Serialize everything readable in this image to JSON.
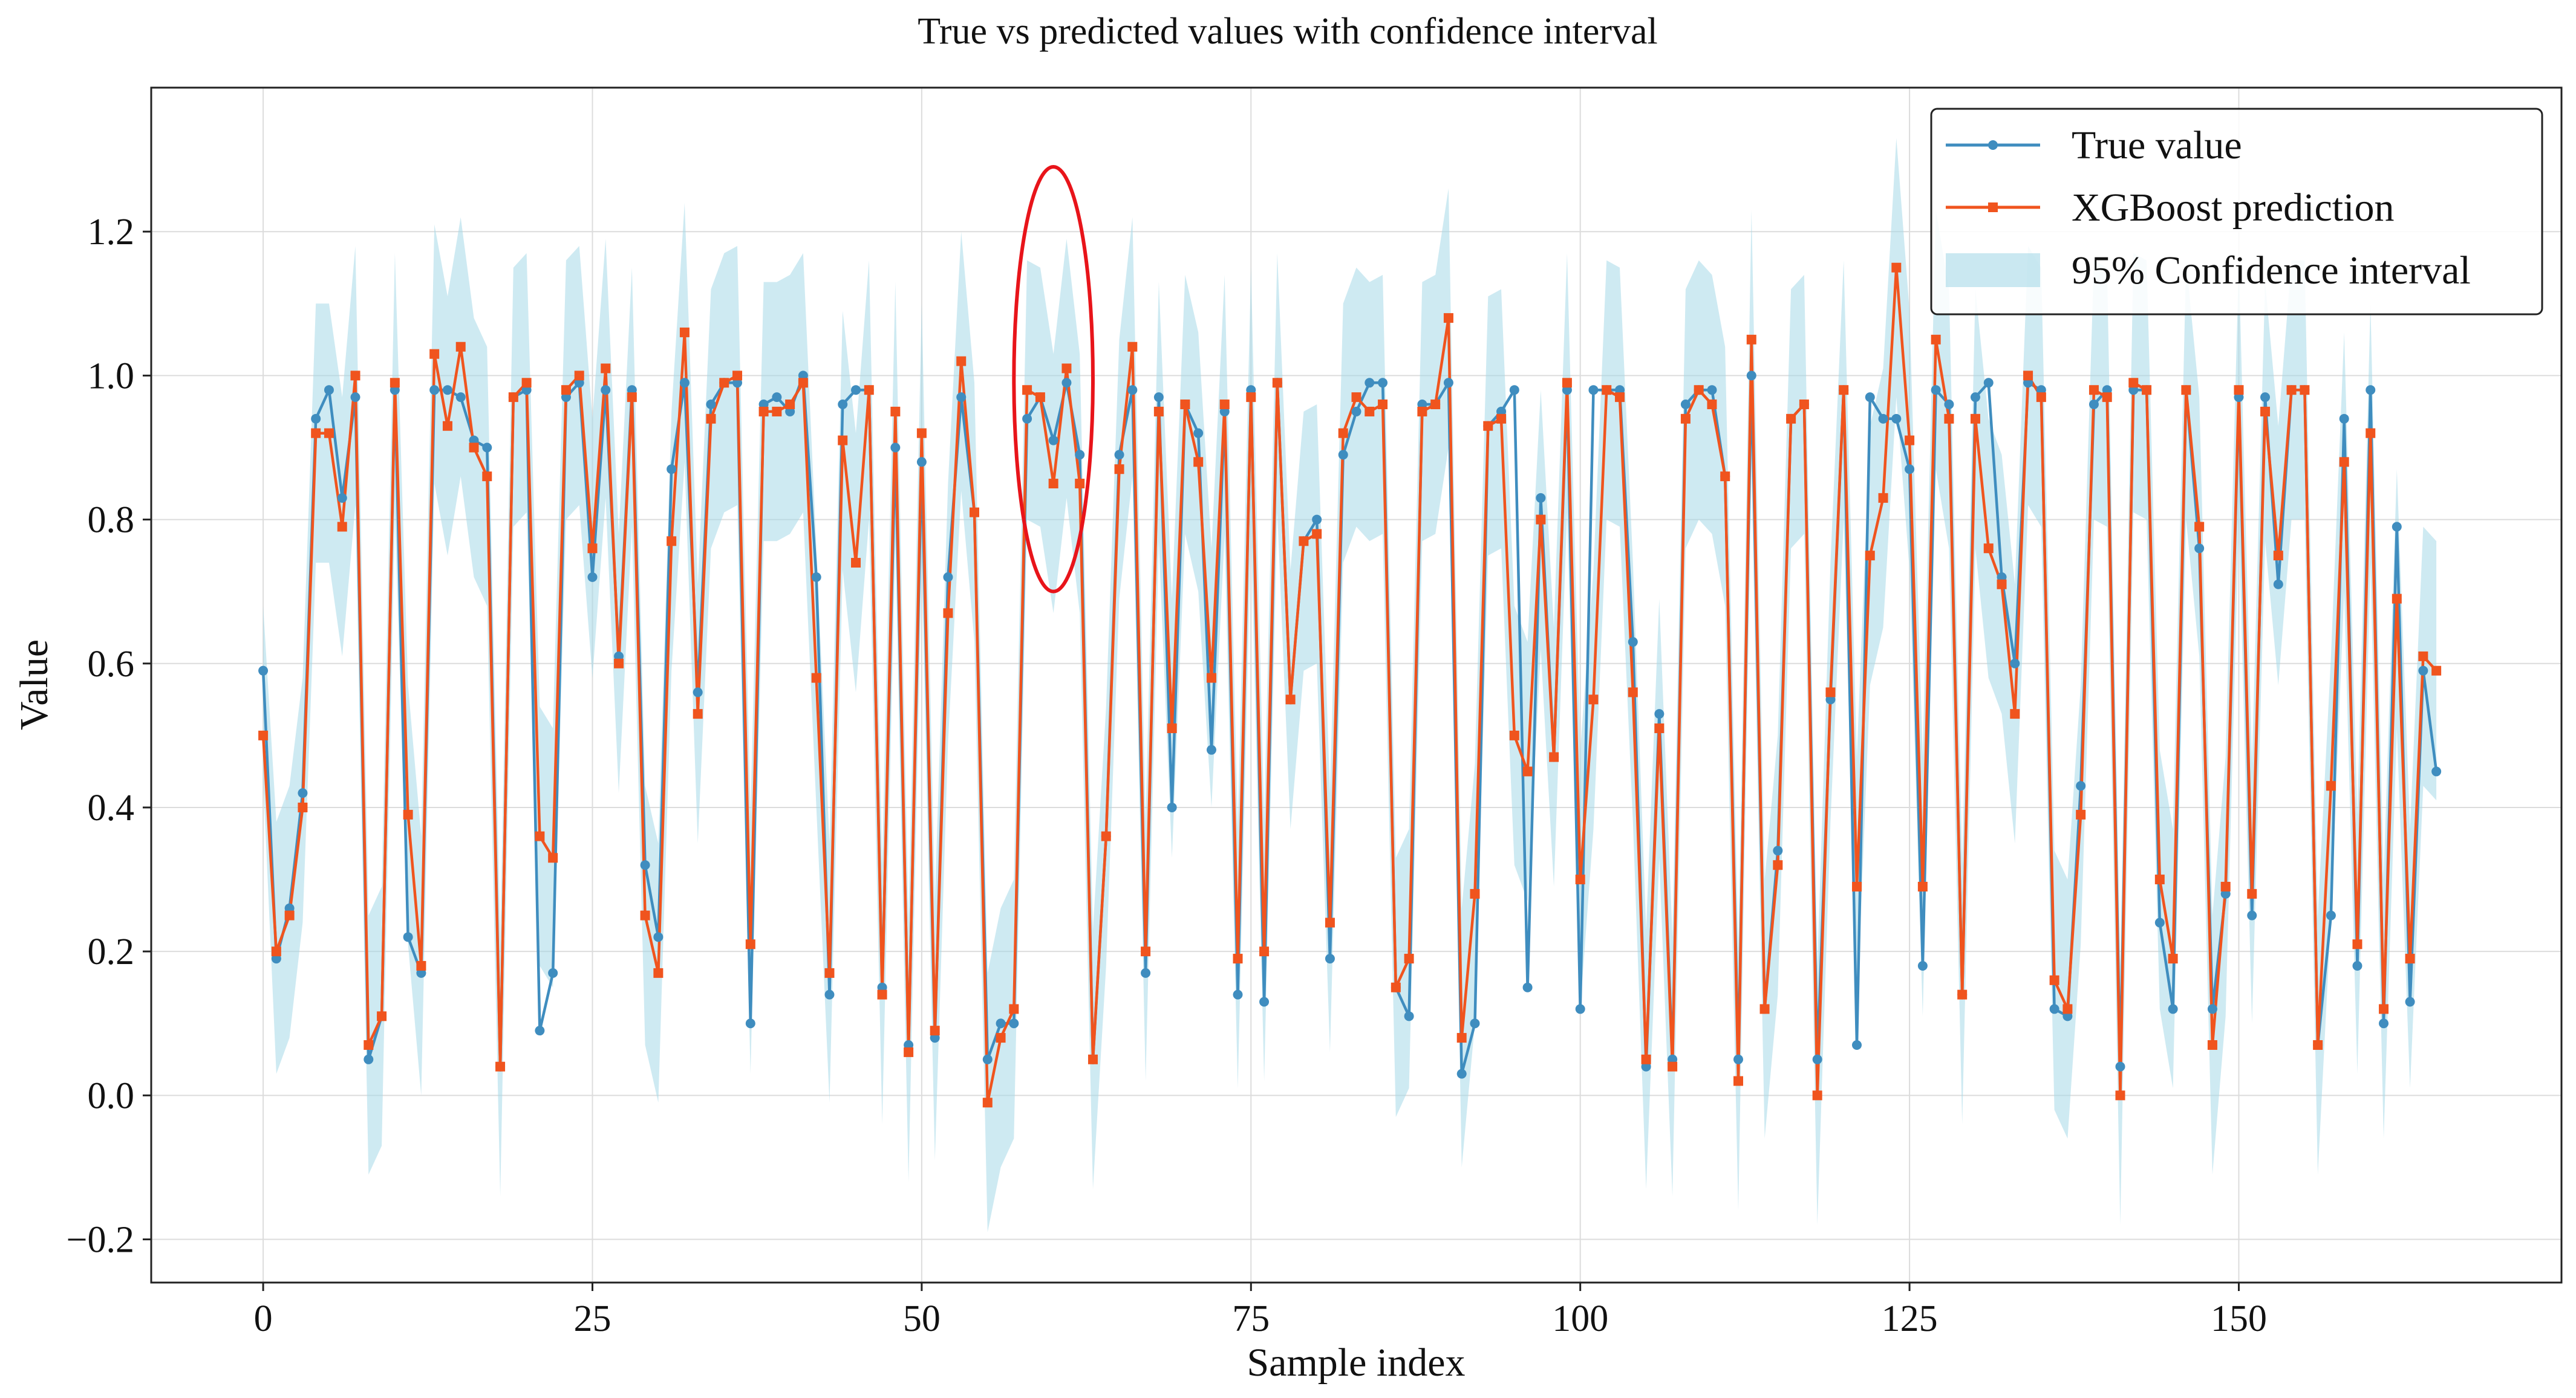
{
  "chart_data": {
    "type": "line",
    "title": "True vs predicted values with confidence interval",
    "xlabel": "Sample index",
    "ylabel": "Value",
    "xlim": [
      -8.5,
      174.5
    ],
    "ylim": [
      -0.26,
      1.4
    ],
    "xticks": [
      0,
      25,
      50,
      75,
      100,
      125,
      150
    ],
    "yticks": [
      -0.2,
      0.0,
      0.2,
      0.4,
      0.6,
      0.8,
      1.0,
      1.2
    ],
    "ytick_labels": [
      "−0.2",
      "0.0",
      "0.2",
      "0.4",
      "0.6",
      "0.8",
      "1.0",
      "1.2"
    ],
    "grid": true,
    "legend_position": "top-right",
    "colors": {
      "true": "#3f8dbf",
      "pred": "#f0541e",
      "ci": "#a6d8e7",
      "highlight": "#e8141a"
    },
    "x": [
      0,
      1,
      2,
      3,
      4,
      5,
      6,
      7,
      8,
      9,
      10,
      11,
      12,
      13,
      14,
      15,
      16,
      17,
      18,
      19,
      20,
      21,
      22,
      23,
      24,
      25,
      26,
      27,
      28,
      29,
      30,
      31,
      32,
      33,
      34,
      35,
      36,
      37,
      38,
      39,
      40,
      41,
      42,
      43,
      44,
      45,
      46,
      47,
      48,
      49,
      50,
      51,
      52,
      53,
      54,
      55,
      56,
      57,
      58,
      59,
      60,
      61,
      62,
      63,
      64,
      65,
      66,
      67,
      68,
      69,
      70,
      71,
      72,
      73,
      74,
      75,
      76,
      77,
      78,
      79,
      80,
      81,
      82,
      83,
      84,
      85,
      86,
      87,
      88,
      89,
      90,
      91,
      92,
      93,
      94,
      95,
      96,
      97,
      98,
      99,
      100,
      101,
      102,
      103,
      104,
      105,
      106,
      107,
      108,
      109,
      110,
      111,
      112,
      113,
      114,
      115,
      116,
      117,
      118,
      119,
      120,
      121,
      122,
      123,
      124,
      125,
      126,
      127,
      128,
      129,
      130,
      131,
      132,
      133,
      134,
      135,
      136,
      137,
      138,
      139,
      140,
      141,
      142,
      143,
      144,
      145,
      146,
      147,
      148,
      149,
      150,
      151,
      152,
      153,
      154,
      155,
      156,
      157,
      158,
      159,
      160,
      161,
      162,
      163,
      164,
      165
    ],
    "series": [
      {
        "name": "True value",
        "marker": "circle",
        "values": [
          0.59,
          0.19,
          0.26,
          0.42,
          0.94,
          0.98,
          0.83,
          0.97,
          0.05,
          0.11,
          0.98,
          0.22,
          0.17,
          0.98,
          0.98,
          0.97,
          0.91,
          0.9,
          0.04,
          0.97,
          0.98,
          0.09,
          0.17,
          0.97,
          0.99,
          0.72,
          0.98,
          0.61,
          0.98,
          0.32,
          0.22,
          0.87,
          0.99,
          0.56,
          0.96,
          0.99,
          0.99,
          0.1,
          0.96,
          0.97,
          0.95,
          1.0,
          0.72,
          0.14,
          0.96,
          0.98,
          0.98,
          0.15,
          0.9,
          0.07,
          0.88,
          0.08,
          0.72,
          0.97,
          0.81,
          0.05,
          0.1,
          0.1,
          0.94,
          0.97,
          0.91,
          0.99,
          0.89,
          0.05,
          0.36,
          0.89,
          0.98,
          0.17,
          0.97,
          0.4,
          0.96,
          0.92,
          0.48,
          0.95,
          0.14,
          0.98,
          0.13,
          0.99,
          0.55,
          0.77,
          0.8,
          0.19,
          0.89,
          0.95,
          0.99,
          0.99,
          0.15,
          0.11,
          0.96,
          0.96,
          0.99,
          0.03,
          0.1,
          0.93,
          0.95,
          0.98,
          0.15,
          0.83,
          0.47,
          0.98,
          0.12,
          0.98,
          0.98,
          0.98,
          0.63,
          0.04,
          0.53,
          0.05,
          0.96,
          0.98,
          0.98,
          0.86,
          0.05,
          1.0,
          0.12,
          0.34,
          0.94,
          0.96,
          0.05,
          0.55,
          0.98,
          0.07,
          0.97,
          0.94,
          0.94,
          0.87,
          0.18,
          0.98,
          0.96,
          0.14,
          0.97,
          0.99,
          0.72,
          0.6,
          0.99,
          0.98,
          0.12,
          0.11,
          0.43,
          0.96,
          0.98,
          0.04,
          0.98,
          0.98,
          0.24,
          0.12,
          0.98,
          0.76,
          0.12,
          0.28,
          0.97,
          0.25,
          0.97,
          0.71,
          0.98,
          0.98,
          0.07,
          0.25,
          0.94,
          0.18,
          0.98,
          0.1,
          0.79,
          0.13,
          0.59,
          0.45
        ]
      },
      {
        "name": "XGBoost prediction",
        "marker": "square",
        "values": [
          0.5,
          0.2,
          0.25,
          0.4,
          0.92,
          0.92,
          0.79,
          1.0,
          0.07,
          0.11,
          0.99,
          0.39,
          0.18,
          1.03,
          0.93,
          1.04,
          0.9,
          0.86,
          0.04,
          0.97,
          0.99,
          0.36,
          0.33,
          0.98,
          1.0,
          0.76,
          1.01,
          0.6,
          0.97,
          0.25,
          0.17,
          0.77,
          1.06,
          0.53,
          0.94,
          0.99,
          1.0,
          0.21,
          0.95,
          0.95,
          0.96,
          0.99,
          0.58,
          0.17,
          0.91,
          0.74,
          0.98,
          0.14,
          0.95,
          0.06,
          0.92,
          0.09,
          0.67,
          1.02,
          0.81,
          -0.01,
          0.08,
          0.12,
          0.98,
          0.97,
          0.85,
          1.01,
          0.85,
          0.05,
          0.36,
          0.87,
          1.04,
          0.2,
          0.95,
          0.51,
          0.96,
          0.88,
          0.58,
          0.96,
          0.19,
          0.97,
          0.2,
          0.99,
          0.55,
          0.77,
          0.78,
          0.24,
          0.92,
          0.97,
          0.95,
          0.96,
          0.15,
          0.19,
          0.95,
          0.96,
          1.08,
          0.08,
          0.28,
          0.93,
          0.94,
          0.5,
          0.45,
          0.8,
          0.47,
          0.99,
          0.3,
          0.55,
          0.98,
          0.97,
          0.56,
          0.05,
          0.51,
          0.04,
          0.94,
          0.98,
          0.96,
          0.86,
          0.02,
          1.05,
          0.12,
          0.32,
          0.94,
          0.96,
          0.0,
          0.56,
          0.98,
          0.29,
          0.75,
          0.83,
          1.15,
          0.91,
          0.29,
          1.05,
          0.94,
          0.14,
          0.94,
          0.76,
          0.71,
          0.53,
          1.0,
          0.97,
          0.16,
          0.12,
          0.39,
          0.98,
          0.97,
          0.0,
          0.99,
          0.98,
          0.3,
          0.19,
          0.98,
          0.79,
          0.07,
          0.29,
          0.98,
          0.28,
          0.95,
          0.75,
          0.98,
          0.98,
          0.07,
          0.43,
          0.88,
          0.21,
          0.92,
          0.12,
          0.69,
          0.19,
          0.61,
          0.59
        ]
      },
      {
        "name": "95% Confidence interval",
        "type": "band",
        "lower": [
          0.44,
          0.03,
          0.08,
          0.24,
          0.74,
          0.74,
          0.61,
          0.82,
          -0.11,
          -0.07,
          0.81,
          0.21,
          0.0,
          0.85,
          0.75,
          0.86,
          0.72,
          0.68,
          -0.14,
          0.79,
          0.81,
          0.18,
          0.15,
          0.8,
          0.82,
          0.58,
          0.83,
          0.42,
          0.79,
          0.07,
          -0.01,
          0.59,
          0.88,
          0.35,
          0.76,
          0.81,
          0.82,
          0.03,
          0.77,
          0.77,
          0.78,
          0.81,
          0.4,
          -0.01,
          0.73,
          0.56,
          0.8,
          -0.04,
          0.77,
          -0.12,
          0.74,
          -0.09,
          0.49,
          0.84,
          0.63,
          -0.19,
          -0.1,
          -0.06,
          0.8,
          0.79,
          0.67,
          0.83,
          0.67,
          -0.13,
          0.18,
          0.69,
          0.86,
          0.02,
          0.77,
          0.33,
          0.78,
          0.7,
          0.4,
          0.78,
          0.01,
          0.79,
          0.02,
          0.81,
          0.37,
          0.59,
          0.6,
          0.06,
          0.74,
          0.79,
          0.77,
          0.78,
          -0.03,
          0.01,
          0.77,
          0.78,
          0.9,
          -0.1,
          0.1,
          0.75,
          0.76,
          0.32,
          0.27,
          0.62,
          0.29,
          0.81,
          0.12,
          0.37,
          0.8,
          0.79,
          0.38,
          -0.13,
          0.33,
          -0.14,
          0.76,
          0.8,
          0.78,
          0.68,
          -0.16,
          0.87,
          -0.06,
          0.14,
          0.76,
          0.78,
          -0.18,
          0.38,
          0.8,
          0.11,
          0.57,
          0.65,
          0.97,
          0.73,
          0.11,
          0.87,
          0.76,
          -0.04,
          0.76,
          0.58,
          0.53,
          0.35,
          0.82,
          0.79,
          -0.02,
          -0.06,
          0.21,
          0.8,
          0.79,
          -0.18,
          0.81,
          0.8,
          0.12,
          0.01,
          0.8,
          0.61,
          -0.11,
          0.11,
          0.8,
          0.1,
          0.77,
          0.57,
          0.8,
          0.8,
          -0.11,
          0.25,
          0.7,
          0.03,
          0.74,
          -0.06,
          0.51,
          0.01,
          0.43,
          0.41
        ],
        "upper": [
          0.68,
          0.38,
          0.43,
          0.58,
          1.1,
          1.1,
          0.97,
          1.18,
          0.25,
          0.29,
          1.17,
          0.57,
          0.36,
          1.21,
          1.11,
          1.22,
          1.08,
          1.04,
          0.22,
          1.15,
          1.17,
          0.54,
          0.51,
          1.16,
          1.18,
          0.94,
          1.19,
          0.78,
          1.15,
          0.43,
          0.35,
          0.95,
          1.24,
          0.71,
          1.12,
          1.17,
          1.18,
          0.39,
          1.13,
          1.13,
          1.14,
          1.17,
          0.76,
          0.35,
          1.09,
          0.92,
          1.16,
          0.32,
          1.13,
          0.24,
          1.1,
          0.27,
          0.85,
          1.2,
          0.99,
          0.17,
          0.26,
          0.3,
          1.16,
          1.15,
          1.03,
          1.19,
          1.03,
          0.23,
          0.54,
          1.05,
          1.22,
          0.38,
          1.13,
          0.69,
          1.14,
          1.06,
          0.76,
          1.14,
          0.37,
          1.15,
          0.38,
          1.17,
          0.73,
          0.95,
          0.96,
          0.42,
          1.1,
          1.15,
          1.13,
          1.14,
          0.33,
          0.37,
          1.13,
          1.14,
          1.26,
          0.26,
          0.46,
          1.11,
          1.12,
          0.68,
          0.63,
          0.98,
          0.65,
          1.17,
          0.48,
          0.73,
          1.16,
          1.15,
          0.74,
          0.23,
          0.69,
          0.22,
          1.12,
          1.16,
          1.14,
          1.04,
          0.2,
          1.23,
          0.3,
          0.5,
          1.12,
          1.14,
          0.18,
          0.74,
          1.16,
          0.47,
          0.93,
          1.01,
          1.33,
          1.09,
          0.47,
          1.23,
          1.12,
          0.32,
          1.12,
          0.94,
          0.89,
          0.71,
          1.18,
          1.15,
          0.34,
          0.3,
          0.57,
          1.16,
          1.15,
          0.18,
          1.17,
          1.16,
          0.48,
          0.37,
          1.16,
          0.97,
          0.25,
          0.47,
          1.16,
          0.46,
          1.13,
          0.93,
          1.16,
          1.16,
          0.25,
          0.61,
          1.06,
          0.39,
          1.1,
          0.3,
          0.87,
          0.37,
          0.79,
          0.77
        ]
      }
    ],
    "annotations": [
      {
        "type": "ellipse",
        "center_x": 60,
        "center_y": 0.995,
        "rx": 3,
        "ry": 0.295,
        "color": "#e8141a"
      }
    ]
  }
}
